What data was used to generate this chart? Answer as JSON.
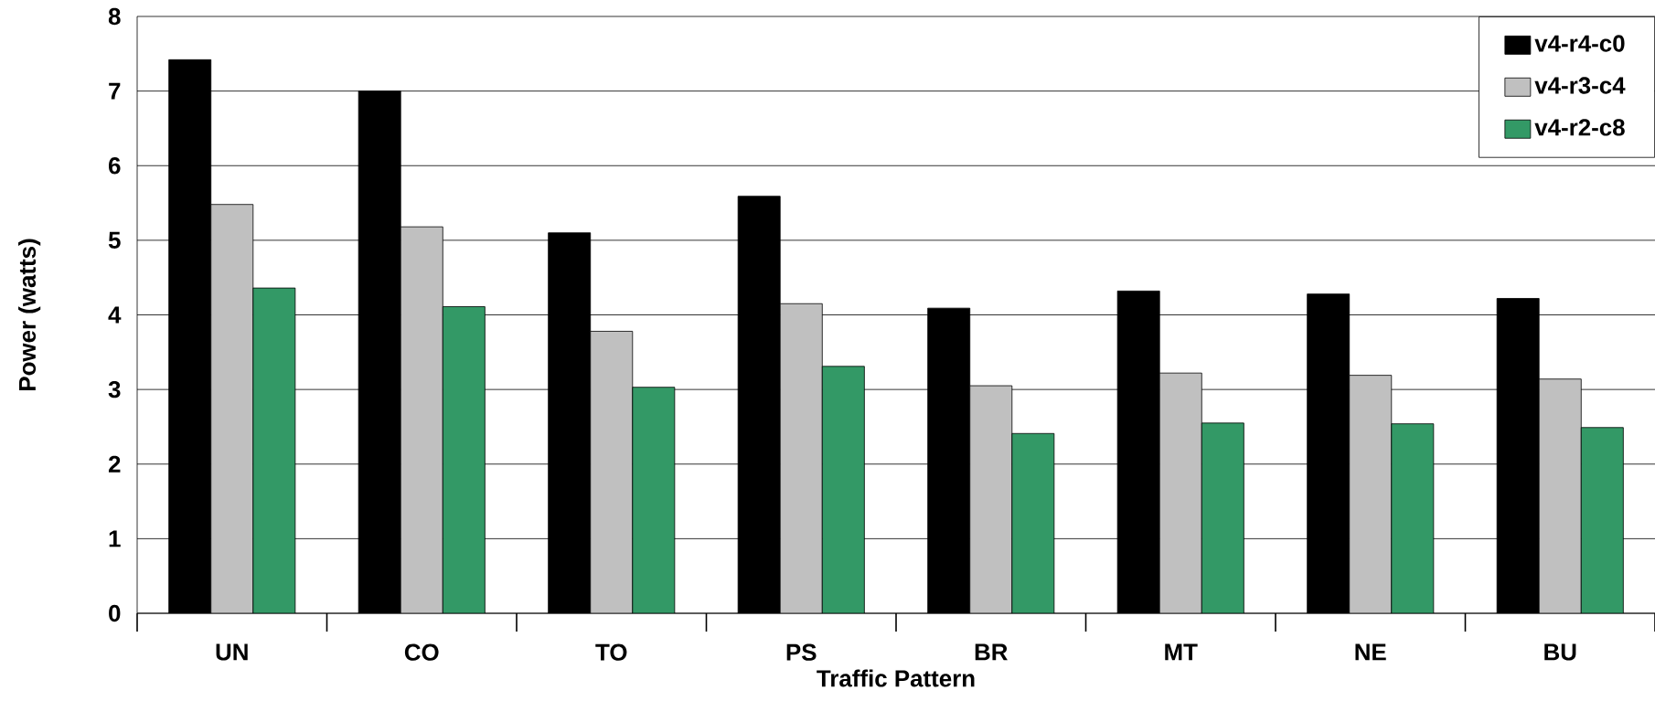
{
  "chart_data": {
    "type": "bar",
    "xlabel": "Traffic Pattern",
    "ylabel": "Power (watts)",
    "categories": [
      "UN",
      "CO",
      "TO",
      "PS",
      "BR",
      "MT",
      "NE",
      "BU"
    ],
    "series": [
      {
        "name": "v4-r4-c0",
        "color": "#000000",
        "values": [
          7.42,
          7.0,
          5.1,
          5.59,
          4.09,
          4.32,
          4.28,
          4.22
        ]
      },
      {
        "name": "v4-r3-c4",
        "color": "#c0c0c0",
        "values": [
          5.48,
          5.18,
          3.78,
          4.15,
          3.05,
          3.22,
          3.19,
          3.14
        ]
      },
      {
        "name": "v4-r2-c8",
        "color": "#339966",
        "values": [
          4.36,
          4.11,
          3.03,
          3.31,
          2.41,
          2.55,
          2.54,
          2.49
        ]
      }
    ],
    "ylim": [
      0,
      8
    ],
    "yticks": [
      0,
      1,
      2,
      3,
      4,
      5,
      6,
      7,
      8
    ],
    "grid": "y",
    "legend": "top right"
  }
}
